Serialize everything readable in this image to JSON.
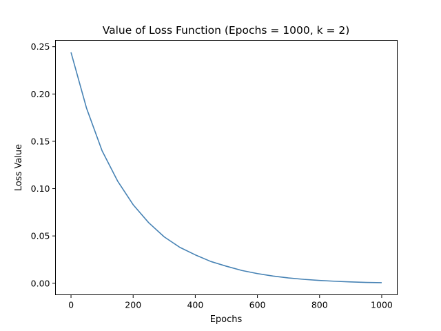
{
  "chart_data": {
    "type": "line",
    "title": "Value of Loss Function (Epochs = 1000, k = 2)",
    "xlabel": "Epochs",
    "ylabel": "Loss Value",
    "xlim": [
      -50,
      1050
    ],
    "ylim": [
      -0.0122,
      0.2567
    ],
    "xticks": [
      0,
      200,
      400,
      600,
      800,
      1000
    ],
    "xtick_labels": [
      "0",
      "200",
      "400",
      "600",
      "800",
      "1000"
    ],
    "yticks": [
      0.0,
      0.05,
      0.1,
      0.15,
      0.2,
      0.25
    ],
    "ytick_labels": [
      "0.00",
      "0.05",
      "0.10",
      "0.15",
      "0.20",
      "0.25"
    ],
    "grid": false,
    "legend": "none",
    "series": [
      {
        "color": "#4682b4",
        "x": [
          0,
          50,
          100,
          150,
          200,
          250,
          300,
          350,
          400,
          450,
          500,
          550,
          600,
          650,
          700,
          750,
          800,
          850,
          900,
          950,
          1000
        ],
        "y": [
          0.244,
          0.185,
          0.14,
          0.108,
          0.083,
          0.064,
          0.049,
          0.038,
          0.03,
          0.023,
          0.018,
          0.0135,
          0.0102,
          0.0076,
          0.0056,
          0.0041,
          0.003,
          0.0021,
          0.0014,
          0.0009,
          0.0006
        ]
      }
    ]
  }
}
